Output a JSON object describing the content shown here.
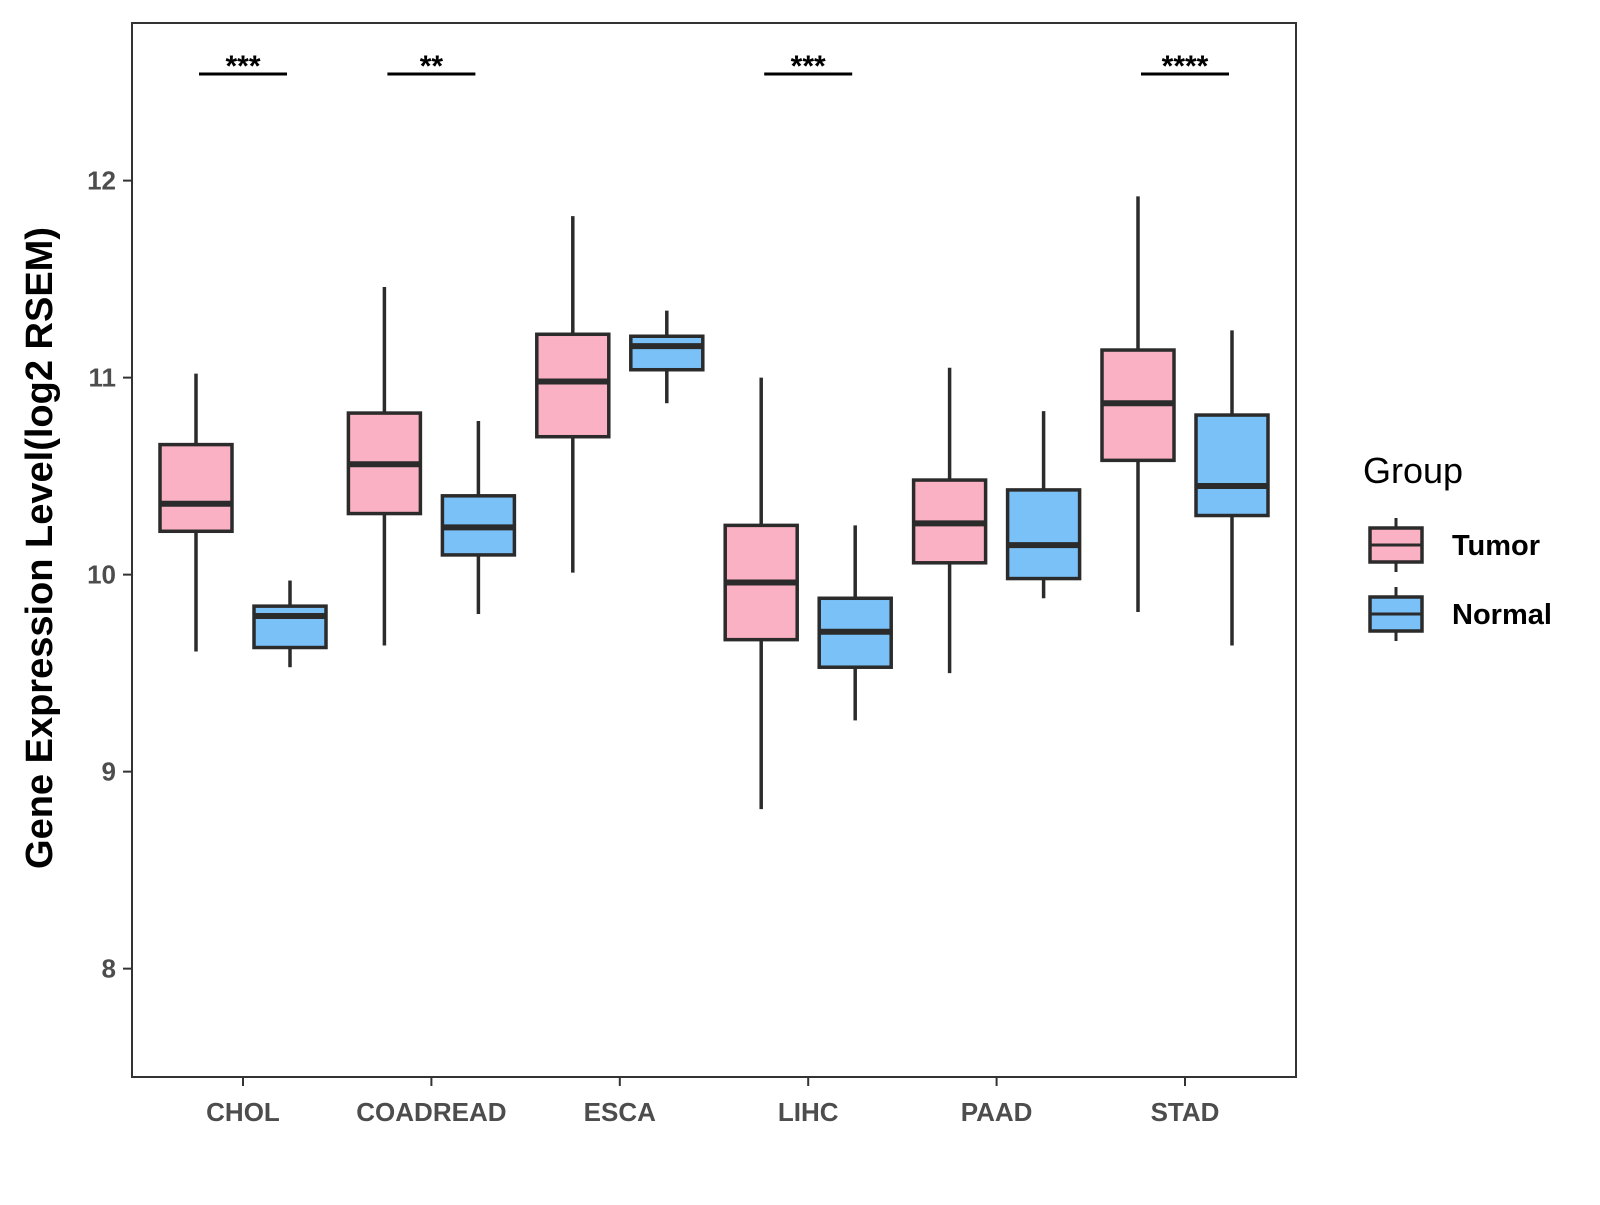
{
  "chart_data": {
    "type": "boxplot",
    "title": "",
    "xlabel": "",
    "ylabel": "Gene Expression Level(log2 RSEM)",
    "ylim": [
      7.45,
      12.8
    ],
    "yticks": [
      8,
      9,
      10,
      11,
      12
    ],
    "grid": false,
    "legend": {
      "title": "Group",
      "position": "right",
      "entries": [
        {
          "name": "Tumor",
          "color": "#FBB1C4"
        },
        {
          "name": "Normal",
          "color": "#7AC1F7"
        }
      ]
    },
    "categories": [
      "CHOL",
      "COADREAD",
      "ESCA",
      "LIHC",
      "PAAD",
      "STAD"
    ],
    "series": [
      {
        "name": "Tumor",
        "color": "#FBB1C4",
        "boxes": [
          {
            "whisker_low": 9.61,
            "q1": 10.22,
            "median": 10.36,
            "q3": 10.66,
            "whisker_high": 11.02
          },
          {
            "whisker_low": 9.64,
            "q1": 10.31,
            "median": 10.56,
            "q3": 10.82,
            "whisker_high": 11.46
          },
          {
            "whisker_low": 10.01,
            "q1": 10.7,
            "median": 10.98,
            "q3": 11.22,
            "whisker_high": 11.82
          },
          {
            "whisker_low": 8.81,
            "q1": 9.67,
            "median": 9.96,
            "q3": 10.25,
            "whisker_high": 11.0
          },
          {
            "whisker_low": 9.5,
            "q1": 10.06,
            "median": 10.26,
            "q3": 10.48,
            "whisker_high": 11.05
          },
          {
            "whisker_low": 9.81,
            "q1": 10.58,
            "median": 10.87,
            "q3": 11.14,
            "whisker_high": 11.92
          }
        ]
      },
      {
        "name": "Normal",
        "color": "#7AC1F7",
        "boxes": [
          {
            "whisker_low": 9.53,
            "q1": 9.63,
            "median": 9.79,
            "q3": 9.84,
            "whisker_high": 9.97
          },
          {
            "whisker_low": 9.8,
            "q1": 10.1,
            "median": 10.24,
            "q3": 10.4,
            "whisker_high": 10.78
          },
          {
            "whisker_low": 10.87,
            "q1": 11.04,
            "median": 11.16,
            "q3": 11.21,
            "whisker_high": 11.34
          },
          {
            "whisker_low": 9.26,
            "q1": 9.53,
            "median": 9.71,
            "q3": 9.88,
            "whisker_high": 10.25
          },
          {
            "whisker_low": 9.88,
            "q1": 9.98,
            "median": 10.15,
            "q3": 10.43,
            "whisker_high": 10.83
          },
          {
            "whisker_low": 9.64,
            "q1": 10.3,
            "median": 10.45,
            "q3": 10.81,
            "whisker_high": 11.24
          }
        ]
      }
    ],
    "significance": [
      {
        "category": "CHOL",
        "label": "***"
      },
      {
        "category": "COADREAD",
        "label": "**"
      },
      {
        "category": "ESCA",
        "label": ""
      },
      {
        "category": "LIHC",
        "label": "***"
      },
      {
        "category": "PAAD",
        "label": ""
      },
      {
        "category": "STAD",
        "label": "****"
      }
    ]
  }
}
